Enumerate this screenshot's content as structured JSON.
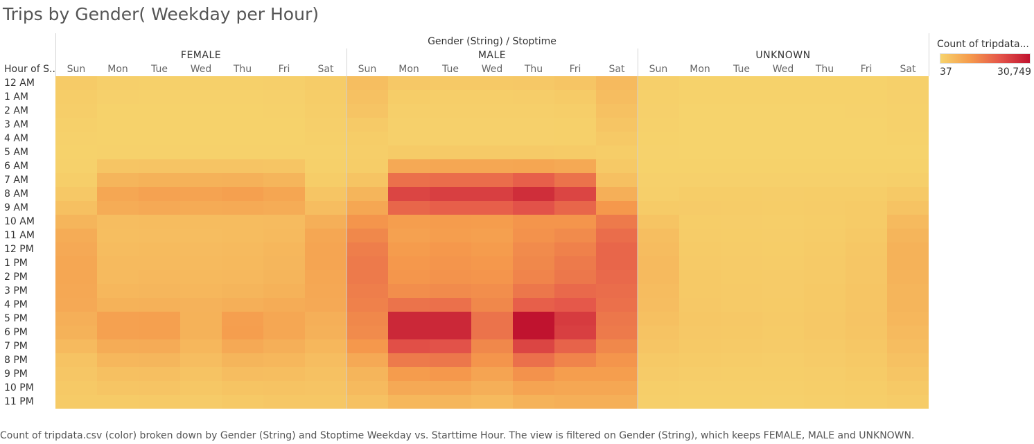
{
  "title": "Trips by Gender( Weekday per Hour)",
  "caption": "Count of tripdata.csv (color) broken down by Gender (String) and Stoptime Weekday vs. Starttime Hour. The view is filtered on Gender (String), which keeps FEMALE, MALE and UNKNOWN.",
  "legend": {
    "title": "Count of tripdata...",
    "min_label": "37",
    "max_label": "30,749",
    "colors": [
      "#f6d36c",
      "#f59a4c",
      "#e4554a",
      "#c0132f"
    ]
  },
  "chart_data": {
    "type": "heatmap",
    "column_header_title": "Gender (String) / Stoptime",
    "row_header_title": "Hour of S..",
    "groups": [
      "FEMALE",
      "MALE",
      "UNKNOWN"
    ],
    "days": [
      "Sun",
      "Mon",
      "Tue",
      "Wed",
      "Thu",
      "Fri",
      "Sat"
    ],
    "hours": [
      "12 AM",
      "1 AM",
      "2 AM",
      "3 AM",
      "4 AM",
      "5 AM",
      "6 AM",
      "7 AM",
      "8 AM",
      "9 AM",
      "10 AM",
      "11 AM",
      "12 PM",
      "1 PM",
      "2 PM",
      "3 PM",
      "4 PM",
      "5 PM",
      "6 PM",
      "7 PM",
      "8 PM",
      "9 PM",
      "10 PM",
      "11 PM"
    ],
    "color_range": [
      37,
      30749
    ],
    "series": [
      {
        "name": "FEMALE",
        "values": [
          [
            1500,
            700,
            600,
            600,
            600,
            700,
            1300
          ],
          [
            1200,
            500,
            400,
            400,
            400,
            500,
            1200
          ],
          [
            900,
            300,
            300,
            300,
            300,
            400,
            1000
          ],
          [
            600,
            200,
            200,
            200,
            200,
            200,
            800
          ],
          [
            400,
            200,
            200,
            200,
            200,
            200,
            600
          ],
          [
            300,
            400,
            400,
            400,
            400,
            400,
            400
          ],
          [
            400,
            2500,
            2700,
            2700,
            2700,
            2500,
            600
          ],
          [
            1000,
            5500,
            6000,
            6000,
            6200,
            5500,
            1200
          ],
          [
            2000,
            8000,
            8800,
            8600,
            9200,
            8200,
            2500
          ],
          [
            3500,
            7000,
            7500,
            7300,
            7400,
            7000,
            4000
          ],
          [
            5500,
            4000,
            4200,
            4100,
            4200,
            4300,
            6500
          ],
          [
            7000,
            3800,
            4000,
            3900,
            4100,
            4500,
            8000
          ],
          [
            7500,
            4200,
            4400,
            4300,
            4500,
            5000,
            8300
          ],
          [
            8000,
            4500,
            4600,
            4500,
            4700,
            5200,
            8300
          ],
          [
            8000,
            4600,
            4800,
            4700,
            4900,
            5400,
            8000
          ],
          [
            7800,
            5000,
            5200,
            5000,
            5400,
            6000,
            7700
          ],
          [
            7500,
            6000,
            6200,
            5900,
            6500,
            7000,
            7500
          ],
          [
            6500,
            9000,
            9200,
            6000,
            9300,
            8000,
            6500
          ],
          [
            6000,
            9000,
            9200,
            6000,
            9500,
            8000,
            6200
          ],
          [
            4500,
            7000,
            7200,
            5000,
            7500,
            6500,
            5000
          ],
          [
            3000,
            5000,
            5300,
            4000,
            5500,
            5000,
            4000
          ],
          [
            2300,
            3500,
            3700,
            3000,
            4000,
            3800,
            3200
          ],
          [
            1800,
            2500,
            2700,
            2200,
            2800,
            3000,
            2700
          ],
          [
            1500,
            1500,
            1600,
            1400,
            1800,
            2200,
            2200
          ]
        ]
      },
      {
        "name": "MALE",
        "values": [
          [
            3800,
            2000,
            1800,
            1800,
            2000,
            2500,
            4500
          ],
          [
            3200,
            1200,
            1000,
            1000,
            1100,
            1500,
            4000
          ],
          [
            2700,
            800,
            700,
            700,
            700,
            1000,
            3300
          ],
          [
            1700,
            500,
            500,
            500,
            500,
            600,
            2500
          ],
          [
            1200,
            500,
            500,
            500,
            500,
            600,
            1800
          ],
          [
            900,
            1500,
            1600,
            1600,
            1600,
            1500,
            1200
          ],
          [
            1200,
            7500,
            8000,
            8000,
            8200,
            7600,
            1800
          ],
          [
            2800,
            16500,
            17000,
            17000,
            19000,
            16000,
            3500
          ],
          [
            5500,
            23000,
            24000,
            24000,
            26500,
            23000,
            6500
          ],
          [
            8000,
            18000,
            19000,
            19000,
            21000,
            18000,
            10500
          ],
          [
            11000,
            9500,
            10000,
            9800,
            11000,
            11000,
            15000
          ],
          [
            13000,
            9000,
            9500,
            9200,
            11500,
            12500,
            17000
          ],
          [
            14500,
            10000,
            10500,
            10000,
            12500,
            14000,
            18000
          ],
          [
            15000,
            10500,
            11000,
            10500,
            13000,
            15000,
            18000
          ],
          [
            15000,
            10800,
            11300,
            11000,
            13500,
            15500,
            17500
          ],
          [
            14500,
            12000,
            12500,
            12000,
            15500,
            17500,
            17000
          ],
          [
            14000,
            16000,
            16500,
            13000,
            19000,
            20000,
            16500
          ],
          [
            13000,
            27500,
            27500,
            16000,
            30749,
            24500,
            15500
          ],
          [
            12500,
            27500,
            27500,
            16000,
            30749,
            24000,
            15000
          ],
          [
            10500,
            21500,
            21000,
            13000,
            23000,
            18500,
            13000
          ],
          [
            7500,
            15000,
            15500,
            11000,
            16500,
            13500,
            11000
          ],
          [
            5500,
            10000,
            10500,
            8500,
            11500,
            9500,
            9500
          ],
          [
            4500,
            7500,
            7800,
            6500,
            8500,
            8000,
            8000
          ],
          [
            3200,
            5000,
            5200,
            4500,
            6000,
            6500,
            6500
          ]
        ]
      },
      {
        "name": "UNKNOWN",
        "values": [
          [
            700,
            300,
            300,
            300,
            300,
            300,
            600
          ],
          [
            600,
            200,
            200,
            200,
            200,
            200,
            500
          ],
          [
            500,
            100,
            100,
            100,
            100,
            150,
            450
          ],
          [
            400,
            100,
            100,
            100,
            100,
            100,
            350
          ],
          [
            300,
            100,
            100,
            100,
            100,
            100,
            250
          ],
          [
            150,
            80,
            80,
            80,
            80,
            80,
            120
          ],
          [
            200,
            200,
            200,
            200,
            200,
            200,
            200
          ],
          [
            500,
            500,
            500,
            500,
            500,
            500,
            800
          ],
          [
            800,
            1200,
            1200,
            1100,
            1200,
            1200,
            1800
          ],
          [
            1500,
            1400,
            1300,
            1200,
            1300,
            1500,
            3000
          ],
          [
            2800,
            1200,
            1100,
            1000,
            1200,
            1500,
            4500
          ],
          [
            3800,
            1300,
            1200,
            1100,
            1300,
            1800,
            5500
          ],
          [
            4200,
            1500,
            1300,
            1200,
            1500,
            2200,
            6000
          ],
          [
            4500,
            1700,
            1400,
            1300,
            1600,
            2300,
            6000
          ],
          [
            4500,
            1800,
            1500,
            1400,
            1700,
            2400,
            5800
          ],
          [
            4200,
            1900,
            1600,
            1400,
            1800,
            2500,
            5500
          ],
          [
            4000,
            2000,
            1700,
            1500,
            1900,
            2600,
            5400
          ],
          [
            3500,
            2200,
            2000,
            1600,
            2100,
            2700,
            5000
          ],
          [
            3000,
            2100,
            1900,
            1500,
            2000,
            2600,
            4500
          ],
          [
            2500,
            1800,
            1600,
            1400,
            1700,
            2200,
            4000
          ],
          [
            1800,
            1500,
            1300,
            1100,
            1400,
            1900,
            3200
          ],
          [
            1400,
            1100,
            1000,
            900,
            1100,
            1500,
            2500
          ],
          [
            1000,
            800,
            800,
            700,
            900,
            1200,
            1800
          ],
          [
            800,
            600,
            600,
            500,
            700,
            1000,
            1300
          ]
        ]
      }
    ]
  }
}
